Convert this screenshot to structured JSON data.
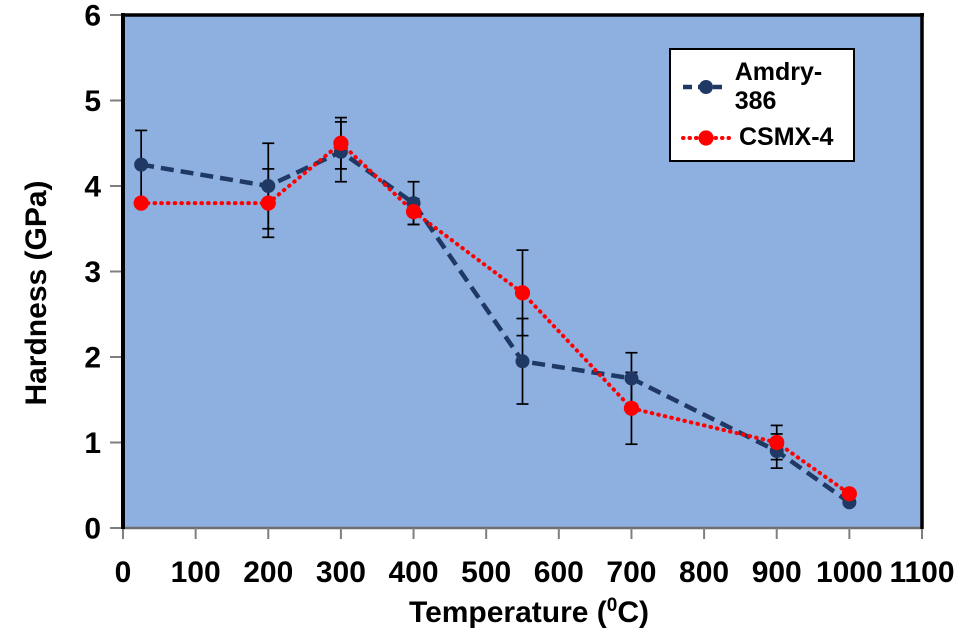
{
  "chart_data": {
    "type": "line",
    "title": "",
    "ylabel": "Hardness (GPa)",
    "xlabel": {
      "prefix": "Temperature (",
      "sup": "0",
      "suffix": "C)"
    },
    "xlim": [
      0,
      1100
    ],
    "ylim": [
      0,
      6
    ],
    "x_ticks": [
      0,
      100,
      200,
      300,
      400,
      500,
      600,
      700,
      800,
      900,
      1000,
      1100
    ],
    "y_ticks": [
      0,
      1,
      2,
      3,
      4,
      5,
      6
    ],
    "grid": false,
    "legend_position": "top-right",
    "plot_bg_color": "#8DB0E0",
    "axis_color": "#000000",
    "tick_color": "#7f7f7f",
    "error_bar_color": "#000000",
    "x": [
      25,
      200,
      300,
      400,
      550,
      700,
      900,
      1000
    ],
    "series": [
      {
        "name": "Amdry-386",
        "color": "#1F3864",
        "marker": "circle",
        "line_style": "dashed",
        "values": [
          4.25,
          4.0,
          4.4,
          3.8,
          1.95,
          1.75,
          0.9,
          0.3
        ],
        "yerr": [
          0.4,
          0.5,
          0.35,
          0.25,
          0.5,
          0.3,
          0.2,
          0
        ]
      },
      {
        "name": "CSMX-4",
        "color": "#FF0000",
        "marker": "circle",
        "line_style": "dotted",
        "values": [
          3.8,
          3.8,
          4.5,
          3.7,
          2.75,
          1.4,
          1.0,
          0.4
        ],
        "yerr": [
          0,
          0.4,
          0.3,
          0.15,
          0.5,
          0.42,
          0.2,
          0
        ]
      }
    ]
  }
}
